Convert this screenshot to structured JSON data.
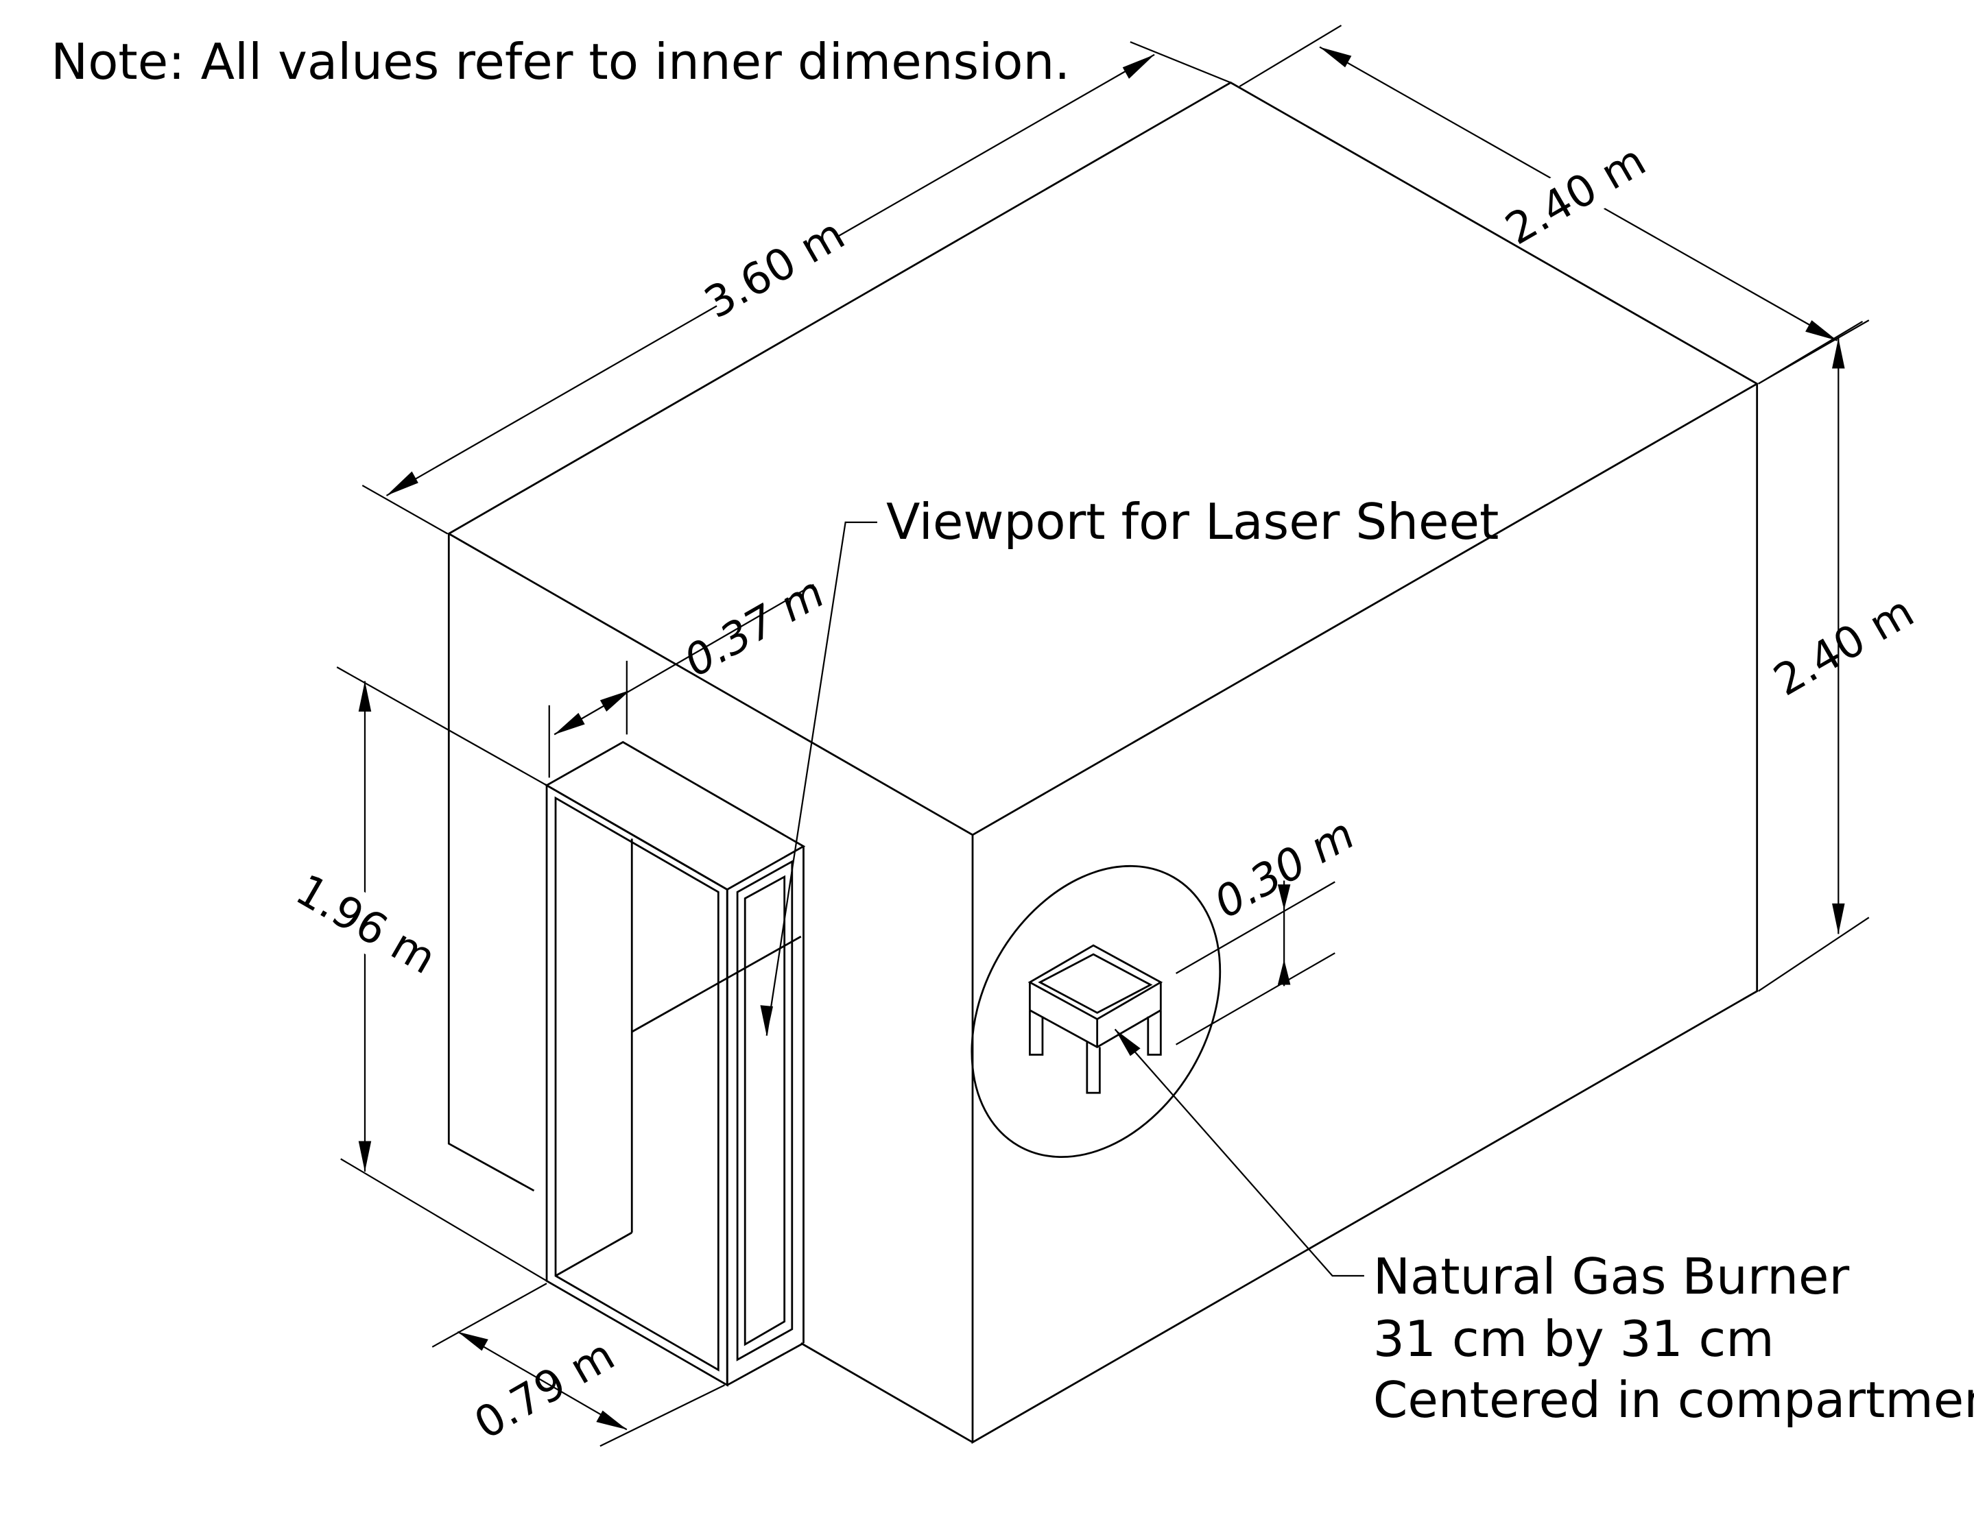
{
  "note": "Note: All values refer to inner dimension.",
  "dimensions": {
    "length": "3.60 m",
    "width": "2.40 m",
    "height": "2.40 m",
    "door_height": "1.96 m",
    "door_width": "0.79 m",
    "door_depth": "0.37 m",
    "burner_height": "0.30 m"
  },
  "labels": {
    "viewport": "Viewport for Laser Sheet",
    "burner_line1": "Natural Gas Burner",
    "burner_line2": "31 cm by 31 cm",
    "burner_line3": "Centered in compartment"
  }
}
